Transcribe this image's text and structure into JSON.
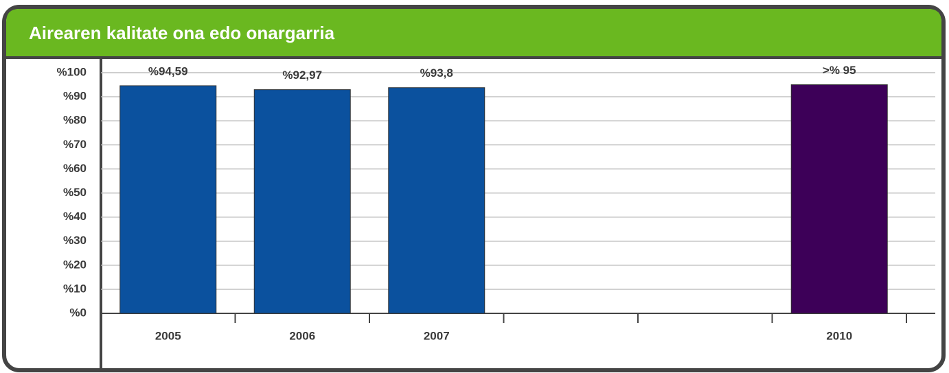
{
  "chart_data": {
    "type": "bar",
    "title": "Airearen kalitate ona edo onargarria",
    "categories": [
      "2005",
      "2006",
      "2007",
      null,
      null,
      "2010"
    ],
    "values": [
      94.59,
      92.97,
      93.8,
      null,
      null,
      95
    ],
    "value_labels": [
      "%94,59",
      "%92,97",
      "%93,8",
      null,
      null,
      ">% 95"
    ],
    "colors": [
      "#0b519e",
      "#0b519e",
      "#0b519e",
      null,
      null,
      "#3d0058"
    ],
    "ylim": [
      0,
      100
    ],
    "yticks": [
      {
        "value": 0,
        "label": "%0"
      },
      {
        "value": 10,
        "label": "%10"
      },
      {
        "value": 20,
        "label": "%20"
      },
      {
        "value": 30,
        "label": "%30"
      },
      {
        "value": 40,
        "label": "%40"
      },
      {
        "value": 50,
        "label": "%50"
      },
      {
        "value": 60,
        "label": "%60"
      },
      {
        "value": 70,
        "label": "%70"
      },
      {
        "value": 80,
        "label": "%80"
      },
      {
        "value": 90,
        "label": "%90"
      },
      {
        "value": 100,
        "label": "%100"
      }
    ],
    "grid": true
  }
}
